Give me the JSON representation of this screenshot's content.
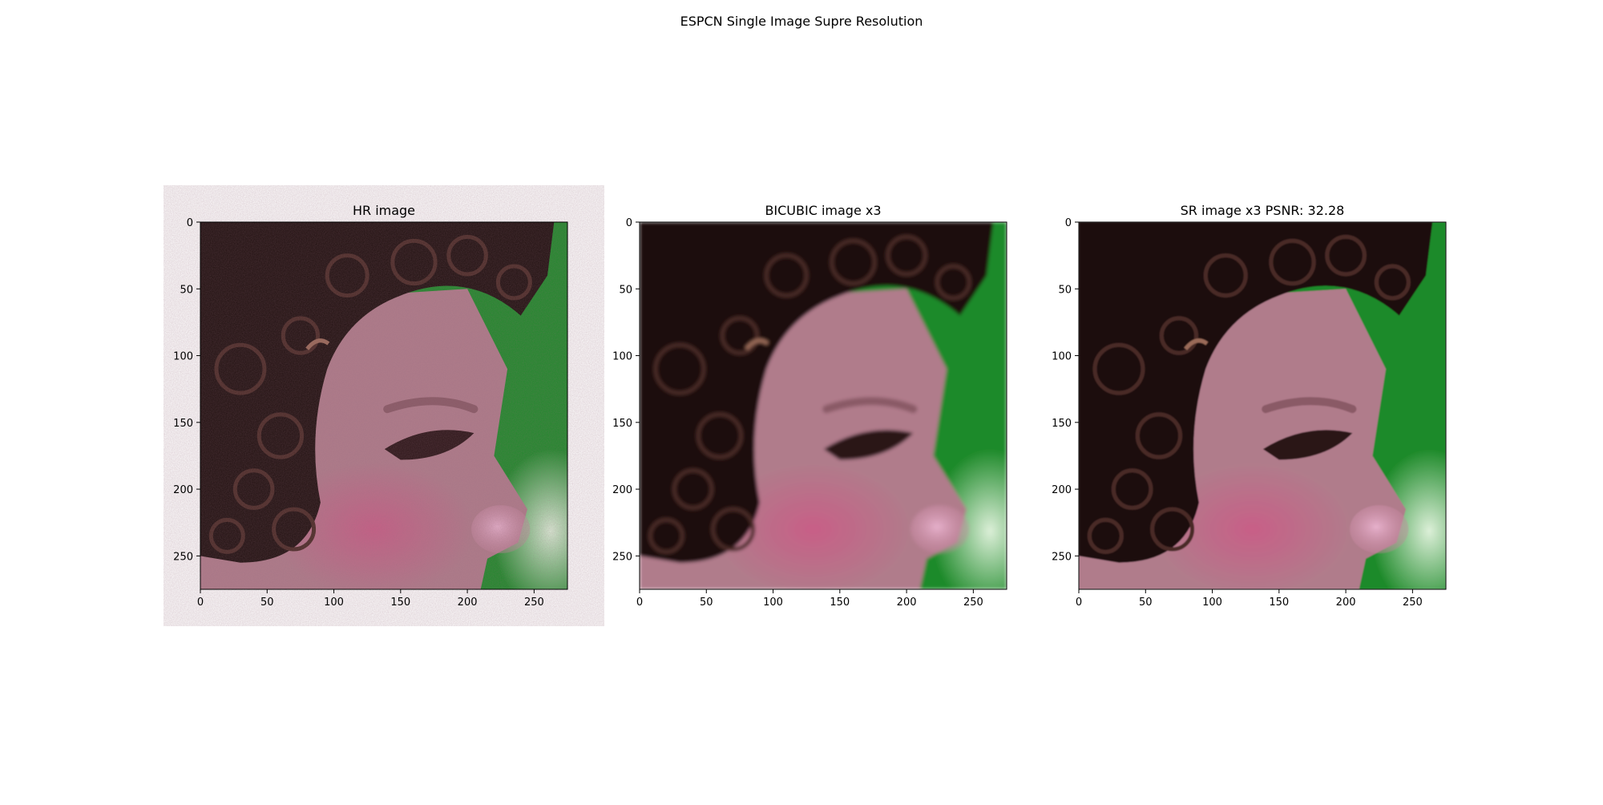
{
  "figure": {
    "suptitle": "ESPCN Single Image Supre Resolution"
  },
  "chart_data": [
    {
      "type": "image",
      "title": "HR image",
      "xlim": [
        0,
        275
      ],
      "ylim": [
        275,
        0
      ],
      "x_ticks": [
        0,
        50,
        100,
        150,
        200,
        250
      ],
      "y_ticks": [
        0,
        50,
        100,
        150,
        200,
        250
      ],
      "blur": 0,
      "grain": true
    },
    {
      "type": "image",
      "title": "BICUBIC image x3",
      "xlim": [
        0,
        275
      ],
      "ylim": [
        275,
        0
      ],
      "x_ticks": [
        0,
        50,
        100,
        150,
        200,
        250
      ],
      "y_ticks": [
        0,
        50,
        100,
        150,
        200,
        250
      ],
      "blur": 2.2,
      "grain": false
    },
    {
      "type": "image",
      "title": "SR image x3  PSNR: 32.28",
      "xlim": [
        0,
        275
      ],
      "ylim": [
        275,
        0
      ],
      "x_ticks": [
        0,
        50,
        100,
        150,
        200,
        250
      ],
      "y_ticks": [
        0,
        50,
        100,
        150,
        200,
        250
      ],
      "blur": 0.9,
      "grain": false
    }
  ],
  "colors": {
    "hair": "#1e0f0e",
    "skin": "#b07c8b",
    "cheek": "#cc5a86",
    "nose": "#e6b0cb",
    "background_green": "#1e8a2a",
    "background_light": "#dcefd8"
  }
}
